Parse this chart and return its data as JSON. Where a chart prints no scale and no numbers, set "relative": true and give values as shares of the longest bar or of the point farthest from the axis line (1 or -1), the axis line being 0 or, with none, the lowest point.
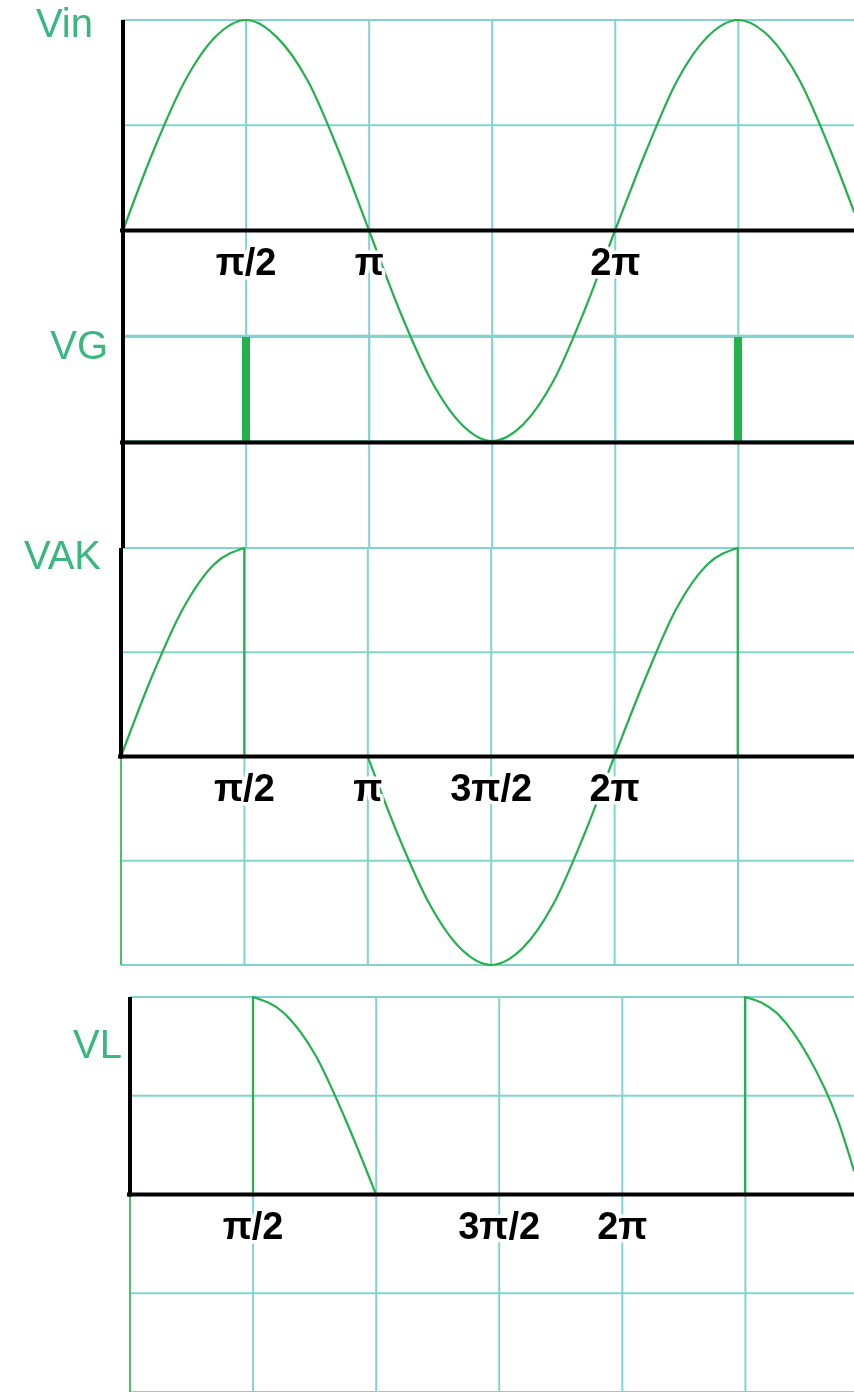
{
  "chart_data": [
    {
      "type": "line",
      "ylabel": "Vin",
      "relative": true,
      "grid": true,
      "xlim": [
        0,
        9.33
      ],
      "xticks": [
        {
          "value": 1.571,
          "label": "π/2"
        },
        {
          "value": 3.142,
          "label": "π"
        },
        {
          "value": 4.712,
          "label": null
        },
        {
          "value": 6.283,
          "label": "2π"
        },
        {
          "value": 7.854,
          "label": null
        }
      ],
      "x": [
        0,
        0.39,
        0.79,
        1.18,
        1.57,
        1.96,
        2.36,
        2.75,
        3.14,
        3.53,
        3.93,
        4.32,
        4.71,
        5.11,
        5.5,
        5.89,
        6.28,
        6.68,
        7.07,
        7.46,
        7.85,
        8.25,
        8.64,
        9.03,
        9.33
      ],
      "color": "#22b14c",
      "values": [
        0,
        0.38,
        0.71,
        0.92,
        1,
        0.92,
        0.71,
        0.38,
        0,
        -0.38,
        -0.71,
        -0.92,
        -1,
        -0.92,
        -0.71,
        -0.38,
        0,
        0.38,
        0.71,
        0.92,
        1,
        0.92,
        0.71,
        0.38,
        0.09
      ]
    },
    {
      "type": "bar",
      "ylabel": "VG",
      "relative": true,
      "grid": true,
      "tick_labels": false,
      "xlim": [
        0,
        9.33
      ],
      "xticks": [
        1.571,
        3.142,
        4.712,
        6.283,
        7.854
      ],
      "x": [
        1.57,
        7.85
      ],
      "color": "#22b14c",
      "values": [
        1,
        1
      ]
    },
    {
      "type": "line",
      "ylabel": "VAK",
      "relative": true,
      "grid": true,
      "xlim": [
        0,
        9.33
      ],
      "xticks": [
        {
          "value": 1.571,
          "label": "π/2"
        },
        {
          "value": 3.142,
          "label": "π"
        },
        {
          "value": 4.712,
          "label": "3π/2"
        },
        {
          "value": 6.283,
          "label": "2π"
        },
        {
          "value": 7.854,
          "label": null
        }
      ],
      "x": [
        0,
        0.39,
        0.79,
        1.18,
        1.57,
        1.57,
        3.14,
        3.53,
        3.93,
        4.32,
        4.71,
        5.11,
        5.5,
        5.89,
        6.28,
        6.68,
        7.07,
        7.46,
        7.85,
        7.85
      ],
      "color": "#22b14c",
      "values": [
        0,
        0.38,
        0.71,
        0.92,
        1,
        0,
        0,
        -0.38,
        -0.71,
        -0.92,
        -1,
        -0.92,
        -0.71,
        -0.38,
        0,
        0.38,
        0.71,
        0.92,
        1,
        0
      ]
    },
    {
      "type": "line",
      "ylabel": "VL",
      "relative": true,
      "grid": true,
      "xlim": [
        0,
        9.24
      ],
      "xticks": [
        {
          "value": 1.571,
          "label": "π/2"
        },
        {
          "value": 3.142,
          "label": null
        },
        {
          "value": 4.712,
          "label": "3π/2"
        },
        {
          "value": 6.283,
          "label": "2π"
        },
        {
          "value": 7.854,
          "label": null
        }
      ],
      "x": [
        0,
        1.57,
        1.57,
        1.96,
        2.36,
        2.75,
        3.14,
        7.85,
        7.85,
        8.25,
        8.64,
        9.03,
        9.24
      ],
      "color": "#22b14c",
      "values": [
        0,
        0,
        1,
        0.92,
        0.71,
        0.38,
        0,
        0,
        1,
        0.92,
        0.71,
        0.38,
        0.12
      ]
    }
  ]
}
